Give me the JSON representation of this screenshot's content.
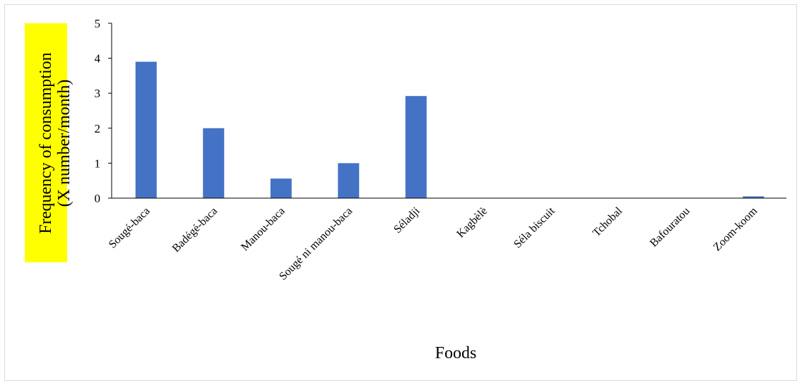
{
  "chart_data": {
    "type": "bar",
    "title": "",
    "xlabel": "Foods",
    "ylabel_line1": "Frequency of consumption",
    "ylabel_line2": "(X number/month)",
    "ylabel_highlight": "#ffff00",
    "bar_color": "#4472c4",
    "ylim": [
      0,
      5
    ],
    "yticks": [
      "0",
      "1",
      "2",
      "3",
      "4",
      "5"
    ],
    "categories": [
      "Sougé-baca",
      "Badégé-baca",
      "Manou-baca",
      "Sougé ni manou-baca",
      "Séladji",
      "Kagbèlè",
      "Séla biscuit",
      "Tchobal",
      "Bafouratou",
      "Zoom-koom"
    ],
    "values": [
      3.9,
      2.0,
      0.56,
      1.0,
      2.92,
      0,
      0,
      0,
      0,
      0.05
    ],
    "grid": false,
    "legend": "none"
  }
}
